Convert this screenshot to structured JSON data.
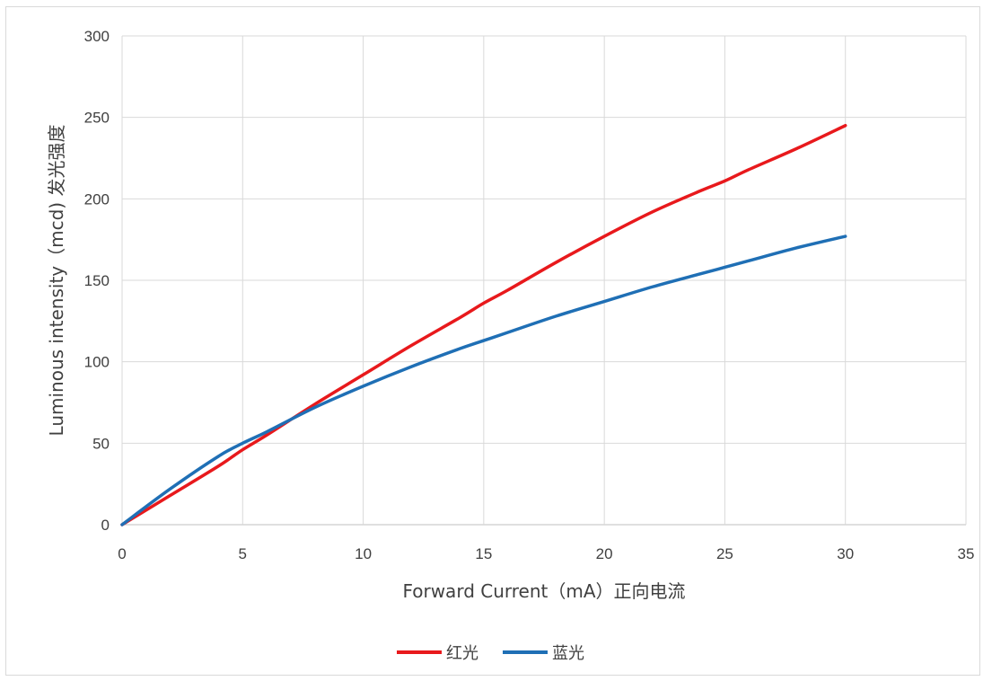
{
  "chart_data": {
    "type": "line",
    "xlabel": "Forward Current（mA）正向电流",
    "ylabel": "Luminous intensity（mcd) 发光强度",
    "xlim": [
      0,
      35
    ],
    "ylim": [
      0,
      300
    ],
    "x_ticks": [
      0,
      5,
      10,
      15,
      20,
      25,
      30,
      35
    ],
    "y_ticks": [
      0,
      50,
      100,
      150,
      200,
      250,
      300
    ],
    "grid": true,
    "legend_position": "bottom",
    "series": [
      {
        "name": "红光",
        "color": "#e8191c",
        "x": [
          0,
          2,
          4,
          5,
          6,
          8,
          10,
          12,
          14,
          15,
          16,
          18,
          20,
          22,
          24,
          25,
          26,
          28,
          30
        ],
        "y": [
          0,
          18,
          36,
          46,
          55,
          74,
          92,
          110,
          127,
          136,
          144,
          161,
          177,
          192,
          205,
          211,
          218,
          231,
          245
        ]
      },
      {
        "name": "蓝光",
        "color": "#1f6fb5",
        "x": [
          0,
          2,
          4,
          5,
          6,
          8,
          10,
          12,
          14,
          15,
          16,
          18,
          20,
          22,
          24,
          25,
          26,
          28,
          30
        ],
        "y": [
          0,
          22,
          42,
          50,
          57,
          72,
          85,
          97,
          108,
          113,
          118,
          128,
          137,
          146,
          154,
          158,
          162,
          170,
          177
        ]
      }
    ]
  }
}
